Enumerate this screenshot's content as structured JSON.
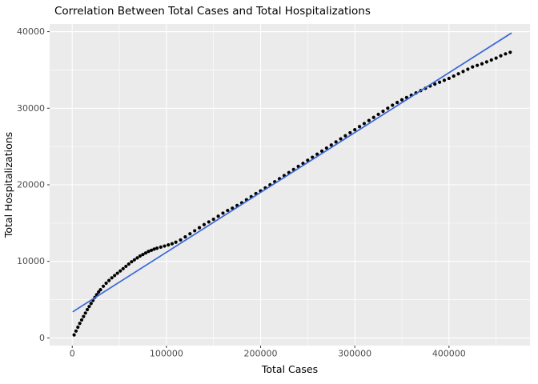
{
  "title": "Correlation Between Total Cases and Total Hospitalizations",
  "chart_data": {
    "type": "scatter",
    "title": "Correlation Between Total Cases and Total Hospitalizations",
    "xlabel": "Total Cases",
    "ylabel": "Total Hospitalizations",
    "xlim": [
      -24000,
      486000
    ],
    "ylim": [
      -1000,
      41000
    ],
    "x_ticks": [
      0,
      100000,
      200000,
      300000,
      400000
    ],
    "x_tick_labels": [
      "0",
      "100000",
      "200000",
      "300000",
      "400000"
    ],
    "x_minor_ticks": [
      50000,
      150000,
      250000,
      350000,
      450000
    ],
    "y_ticks": [
      0,
      10000,
      20000,
      30000,
      40000
    ],
    "y_tick_labels": [
      "0",
      "10000",
      "20000",
      "30000",
      "40000"
    ],
    "y_minor_ticks": [
      5000,
      15000,
      25000,
      35000
    ],
    "grid": true,
    "legend": false,
    "panel_bg": "#EBEBEB",
    "grid_major_color": "#FFFFFF",
    "grid_minor_color": "#FFFFFF",
    "tick_mark_color": "#333333",
    "point_color": "#000000",
    "trend_color": "#3A66D9",
    "points": [
      [
        2000,
        400
      ],
      [
        4000,
        900
      ],
      [
        6000,
        1400
      ],
      [
        8000,
        1900
      ],
      [
        10000,
        2350
      ],
      [
        12000,
        2800
      ],
      [
        14000,
        3250
      ],
      [
        16000,
        3700
      ],
      [
        18000,
        4100
      ],
      [
        20000,
        4500
      ],
      [
        22000,
        4900
      ],
      [
        24000,
        5300
      ],
      [
        26000,
        5650
      ],
      [
        28000,
        6000
      ],
      [
        30000,
        6300
      ],
      [
        33000,
        6750
      ],
      [
        36000,
        7150
      ],
      [
        39000,
        7500
      ],
      [
        42000,
        7850
      ],
      [
        45000,
        8150
      ],
      [
        48000,
        8450
      ],
      [
        51000,
        8750
      ],
      [
        54000,
        9050
      ],
      [
        57000,
        9350
      ],
      [
        60000,
        9650
      ],
      [
        63000,
        9950
      ],
      [
        66000,
        10200
      ],
      [
        69000,
        10450
      ],
      [
        72000,
        10700
      ],
      [
        75000,
        10900
      ],
      [
        78000,
        11100
      ],
      [
        81000,
        11300
      ],
      [
        84000,
        11450
      ],
      [
        87000,
        11600
      ],
      [
        90000,
        11720
      ],
      [
        94000,
        11860
      ],
      [
        98000,
        12000
      ],
      [
        102000,
        12150
      ],
      [
        106000,
        12300
      ],
      [
        110000,
        12500
      ],
      [
        115000,
        12800
      ],
      [
        120000,
        13200
      ],
      [
        125000,
        13600
      ],
      [
        130000,
        14000
      ],
      [
        135000,
        14400
      ],
      [
        140000,
        14800
      ],
      [
        145000,
        15150
      ],
      [
        150000,
        15500
      ],
      [
        155000,
        15900
      ],
      [
        160000,
        16300
      ],
      [
        165000,
        16650
      ],
      [
        170000,
        16950
      ],
      [
        175000,
        17300
      ],
      [
        180000,
        17650
      ],
      [
        185000,
        18050
      ],
      [
        190000,
        18450
      ],
      [
        195000,
        18850
      ],
      [
        200000,
        19200
      ],
      [
        205000,
        19600
      ],
      [
        210000,
        20000
      ],
      [
        215000,
        20400
      ],
      [
        220000,
        20800
      ],
      [
        225000,
        21200
      ],
      [
        230000,
        21600
      ],
      [
        235000,
        22000
      ],
      [
        240000,
        22400
      ],
      [
        245000,
        22800
      ],
      [
        250000,
        23200
      ],
      [
        255000,
        23600
      ],
      [
        260000,
        24000
      ],
      [
        265000,
        24400
      ],
      [
        270000,
        24800
      ],
      [
        275000,
        25200
      ],
      [
        280000,
        25600
      ],
      [
        285000,
        26000
      ],
      [
        290000,
        26400
      ],
      [
        295000,
        26800
      ],
      [
        300000,
        27200
      ],
      [
        305000,
        27600
      ],
      [
        310000,
        28000
      ],
      [
        315000,
        28400
      ],
      [
        320000,
        28800
      ],
      [
        325000,
        29200
      ],
      [
        330000,
        29600
      ],
      [
        335000,
        30000
      ],
      [
        340000,
        30400
      ],
      [
        345000,
        30750
      ],
      [
        350000,
        31100
      ],
      [
        355000,
        31400
      ],
      [
        360000,
        31700
      ],
      [
        365000,
        32000
      ],
      [
        370000,
        32300
      ],
      [
        375000,
        32600
      ],
      [
        380000,
        32900
      ],
      [
        385000,
        33150
      ],
      [
        390000,
        33400
      ],
      [
        395000,
        33650
      ],
      [
        400000,
        33900
      ],
      [
        405000,
        34200
      ],
      [
        410000,
        34500
      ],
      [
        415000,
        34800
      ],
      [
        420000,
        35100
      ],
      [
        425000,
        35400
      ],
      [
        430000,
        35600
      ],
      [
        435000,
        35800
      ],
      [
        440000,
        36050
      ],
      [
        445000,
        36300
      ],
      [
        450000,
        36550
      ],
      [
        455000,
        36850
      ],
      [
        460000,
        37100
      ],
      [
        465000,
        37300
      ]
    ],
    "trend_line": {
      "x": [
        1000,
        466000
      ],
      "y": [
        3450,
        39800
      ]
    }
  }
}
